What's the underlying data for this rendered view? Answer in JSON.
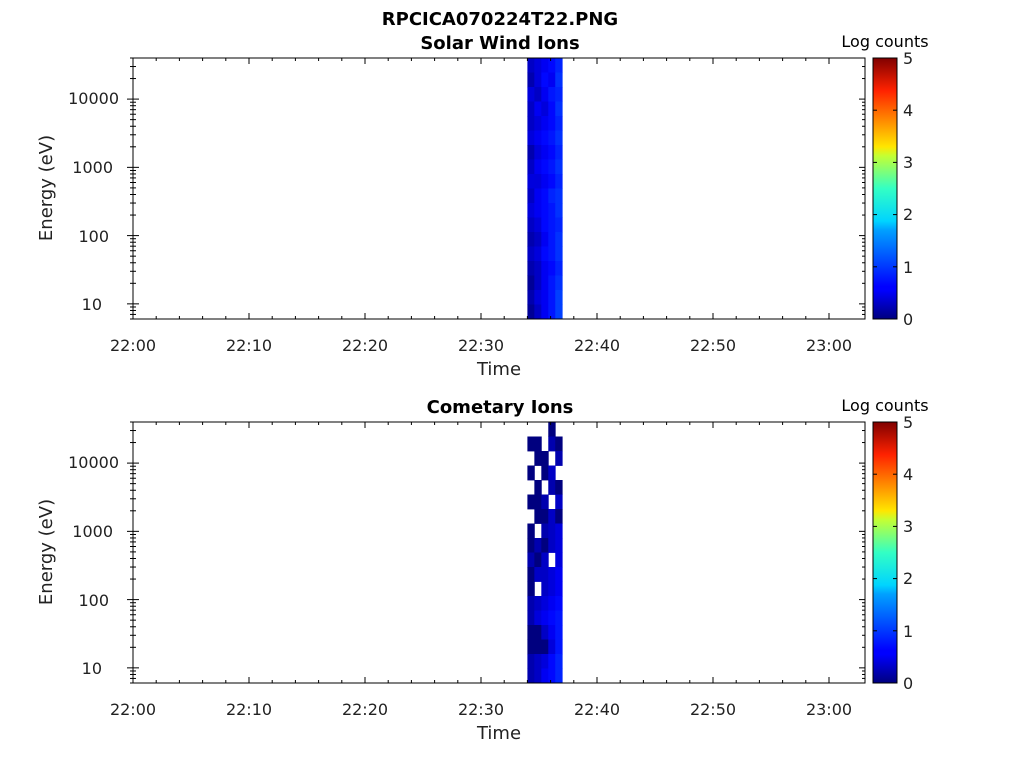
{
  "figure": {
    "title": "RPCICA070224T22.PNG"
  },
  "chart_data": [
    {
      "type": "heatmap",
      "title": "Solar Wind Ions",
      "xlabel": "Time",
      "ylabel": "Energy (eV)",
      "x_ticks": [
        "22:00",
        "22:10",
        "22:20",
        "22:30",
        "22:40",
        "22:50",
        "23:00"
      ],
      "y_ticks": [
        "10",
        "100",
        "1000",
        "10000"
      ],
      "y_tick_values": [
        10,
        100,
        1000,
        10000
      ],
      "y_scale": "log",
      "x_range": [
        "22:00",
        "23:03"
      ],
      "y_range": [
        6,
        40000
      ],
      "colorbar": {
        "label": "Log counts",
        "ticks": [
          "0",
          "1",
          "2",
          "3",
          "4",
          "5"
        ],
        "range": [
          0,
          5
        ],
        "colormap": "jet"
      },
      "data_time_span": [
        "22:34",
        "22:37"
      ],
      "time_bins": [
        "22:34",
        "22:34:40",
        "22:35:20",
        "22:36",
        "22:36:40"
      ],
      "value_rows_high_to_low_energy": [
        [
          0.3,
          0.4,
          0.5,
          0.6,
          0.8
        ],
        [
          0.2,
          0.4,
          0.6,
          0.5,
          0.9
        ],
        [
          0.4,
          0.3,
          0.5,
          0.7,
          0.8
        ],
        [
          0.3,
          0.5,
          0.4,
          0.6,
          0.9
        ],
        [
          0.3,
          0.4,
          0.5,
          0.6,
          0.8
        ],
        [
          0.4,
          0.5,
          0.6,
          0.7,
          0.9
        ],
        [
          0.2,
          0.4,
          0.5,
          0.6,
          0.8
        ],
        [
          0.3,
          0.5,
          0.6,
          0.7,
          0.9
        ],
        [
          0.4,
          0.4,
          0.5,
          0.6,
          0.8
        ],
        [
          0.3,
          0.5,
          0.6,
          0.8,
          0.9
        ],
        [
          0.4,
          0.5,
          0.6,
          0.7,
          0.9
        ],
        [
          0.3,
          0.4,
          0.6,
          0.7,
          0.8
        ],
        [
          0.2,
          0.3,
          0.5,
          0.7,
          0.9
        ],
        [
          0.3,
          0.4,
          0.6,
          0.7,
          0.9
        ],
        [
          0.2,
          0.3,
          0.5,
          0.6,
          0.8
        ],
        [
          0.1,
          0.3,
          0.5,
          0.7,
          0.9
        ],
        [
          0.2,
          0.4,
          0.5,
          0.7,
          1.0
        ],
        [
          0.1,
          0.3,
          0.5,
          0.7,
          1.0
        ]
      ]
    },
    {
      "type": "heatmap",
      "title": "Cometary Ions",
      "xlabel": "Time",
      "ylabel": "Energy (eV)",
      "x_ticks": [
        "22:00",
        "22:10",
        "22:20",
        "22:30",
        "22:40",
        "22:50",
        "23:00"
      ],
      "y_ticks": [
        "10",
        "100",
        "1000",
        "10000"
      ],
      "y_tick_values": [
        10,
        100,
        1000,
        10000
      ],
      "y_scale": "log",
      "x_range": [
        "22:00",
        "23:03"
      ],
      "y_range": [
        6,
        40000
      ],
      "colorbar": {
        "label": "Log counts",
        "ticks": [
          "0",
          "1",
          "2",
          "3",
          "4",
          "5"
        ],
        "range": [
          0,
          5
        ],
        "colormap": "jet"
      },
      "data_time_span": [
        "22:34",
        "22:37"
      ],
      "time_bins": [
        "22:34",
        "22:34:40",
        "22:35:20",
        "22:36",
        "22:36:40"
      ],
      "value_rows_high_to_low_energy": [
        [
          null,
          null,
          null,
          0.0,
          null
        ],
        [
          0.0,
          0.0,
          null,
          0.2,
          0.0
        ],
        [
          null,
          0.0,
          0.0,
          null,
          0.2
        ],
        [
          0.0,
          null,
          0.0,
          0.3,
          null
        ],
        [
          null,
          0.0,
          null,
          0.2,
          0.0
        ],
        [
          0.0,
          0.0,
          0.2,
          null,
          0.3
        ],
        [
          null,
          0.0,
          0.0,
          0.3,
          0.0
        ],
        [
          0.0,
          null,
          0.2,
          0.3,
          0.4
        ],
        [
          0.0,
          0.2,
          0.0,
          0.3,
          0.4
        ],
        [
          0.2,
          0.0,
          0.3,
          null,
          0.4
        ],
        [
          0.0,
          0.3,
          0.3,
          0.4,
          0.5
        ],
        [
          0.0,
          null,
          0.3,
          0.4,
          0.5
        ],
        [
          0.2,
          0.3,
          0.4,
          0.5,
          0.6
        ],
        [
          0.2,
          0.4,
          0.5,
          0.6,
          0.7
        ],
        [
          0.0,
          0.0,
          0.3,
          0.5,
          0.7
        ],
        [
          0.0,
          0.0,
          0.0,
          0.4,
          0.7
        ],
        [
          0.2,
          0.3,
          0.4,
          0.6,
          0.8
        ],
        [
          0.2,
          0.3,
          0.5,
          0.6,
          0.8
        ]
      ]
    }
  ]
}
